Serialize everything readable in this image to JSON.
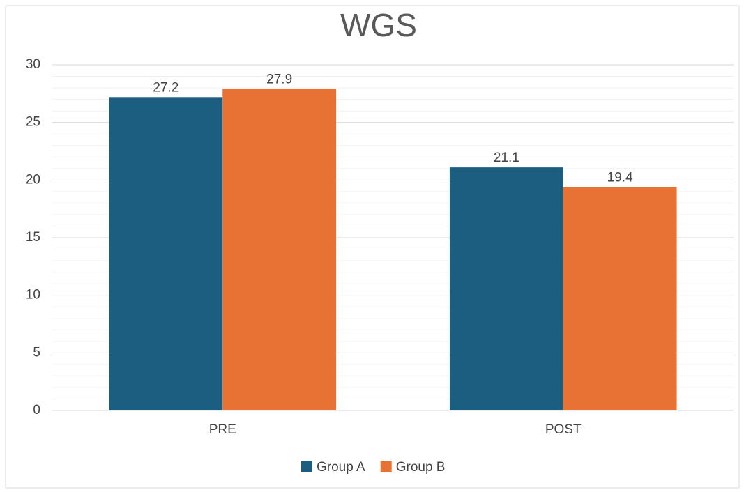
{
  "chart_data": {
    "type": "bar",
    "title": "WGS",
    "categories": [
      "PRE",
      "POST"
    ],
    "series": [
      {
        "name": "Group A",
        "color": "#1b5e7f",
        "values": [
          27.2,
          21.1
        ]
      },
      {
        "name": "Group B",
        "color": "#e87233",
        "values": [
          27.9,
          19.4
        ]
      }
    ],
    "ylim": [
      0,
      30
    ],
    "yticks": [
      0,
      5,
      10,
      15,
      20,
      25,
      30
    ],
    "grid": true,
    "minor_grid": true,
    "legend": "bottom"
  }
}
